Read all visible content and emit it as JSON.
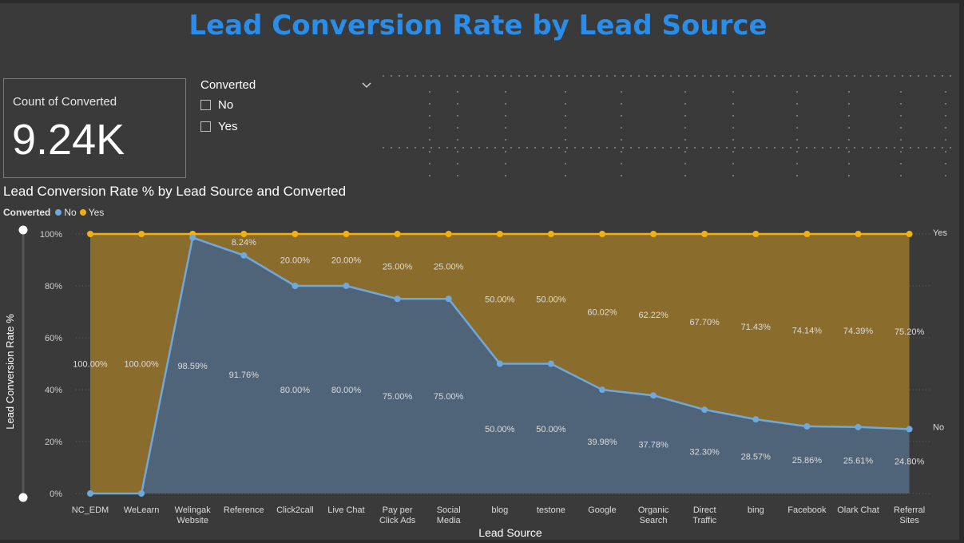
{
  "page": {
    "title": "Lead Conversion Rate by Lead Source"
  },
  "card": {
    "label": "Count of Converted",
    "value": "9.24K"
  },
  "slicer": {
    "title": "Converted",
    "options": [
      {
        "label": "No",
        "checked": false
      },
      {
        "label": "Yes",
        "checked": false
      }
    ]
  },
  "chart_data": {
    "type": "area",
    "title": "Lead Conversion Rate % by Lead Source and Converted",
    "xlabel": "Lead Source",
    "ylabel": "Lead Conversion Rate %",
    "legend_title": "Converted",
    "legend_position": "top-left",
    "stacked": true,
    "ylim": [
      0,
      100
    ],
    "yticks": [
      "0%",
      "20%",
      "40%",
      "60%",
      "80%",
      "100%"
    ],
    "grid": true,
    "categories": [
      [
        "NC_EDM"
      ],
      [
        "WeLearn"
      ],
      [
        "Welingak",
        "Website"
      ],
      [
        "Reference"
      ],
      [
        "Click2call"
      ],
      [
        "Live Chat"
      ],
      [
        "Pay per",
        "Click Ads"
      ],
      [
        "Social",
        "Media"
      ],
      [
        "blog"
      ],
      [
        "testone"
      ],
      [
        "Google"
      ],
      [
        "Organic",
        "Search"
      ],
      [
        "Direct",
        "Traffic"
      ],
      [
        "bing"
      ],
      [
        "Facebook"
      ],
      [
        "Olark Chat"
      ],
      [
        "Referral",
        "Sites"
      ]
    ],
    "series": [
      {
        "name": "No",
        "color": "#6fa8dc",
        "fill": "#4f6478",
        "end_label": "No",
        "values": [
          0,
          0,
          98.59,
          91.76,
          80,
          80,
          75,
          75,
          50,
          50,
          39.98,
          37.78,
          32.3,
          28.57,
          25.86,
          25.61,
          24.8
        ],
        "labels": [
          "",
          "",
          "98.59%",
          "91.76%",
          "80.00%",
          "80.00%",
          "75.00%",
          "75.00%",
          "50.00%",
          "50.00%",
          "39.98%",
          "37.78%",
          "32.30%",
          "28.57%",
          "25.86%",
          "25.61%",
          "24.80%"
        ]
      },
      {
        "name": "Yes",
        "color": "#f2b10f",
        "fill": "#8a6d2c",
        "end_label": "Yes",
        "values": [
          100,
          100,
          1.41,
          8.24,
          20,
          20,
          25,
          25,
          50,
          50,
          60.02,
          62.22,
          67.7,
          71.43,
          74.14,
          74.39,
          75.2
        ],
        "labels": [
          "100.00%",
          "100.00%",
          "",
          "8.24%",
          "20.00%",
          "20.00%",
          "25.00%",
          "25.00%",
          "50.00%",
          "50.00%",
          "60.02%",
          "62.22%",
          "67.70%",
          "71.43%",
          "74.14%",
          "74.39%",
          "75.20%"
        ]
      }
    ]
  }
}
